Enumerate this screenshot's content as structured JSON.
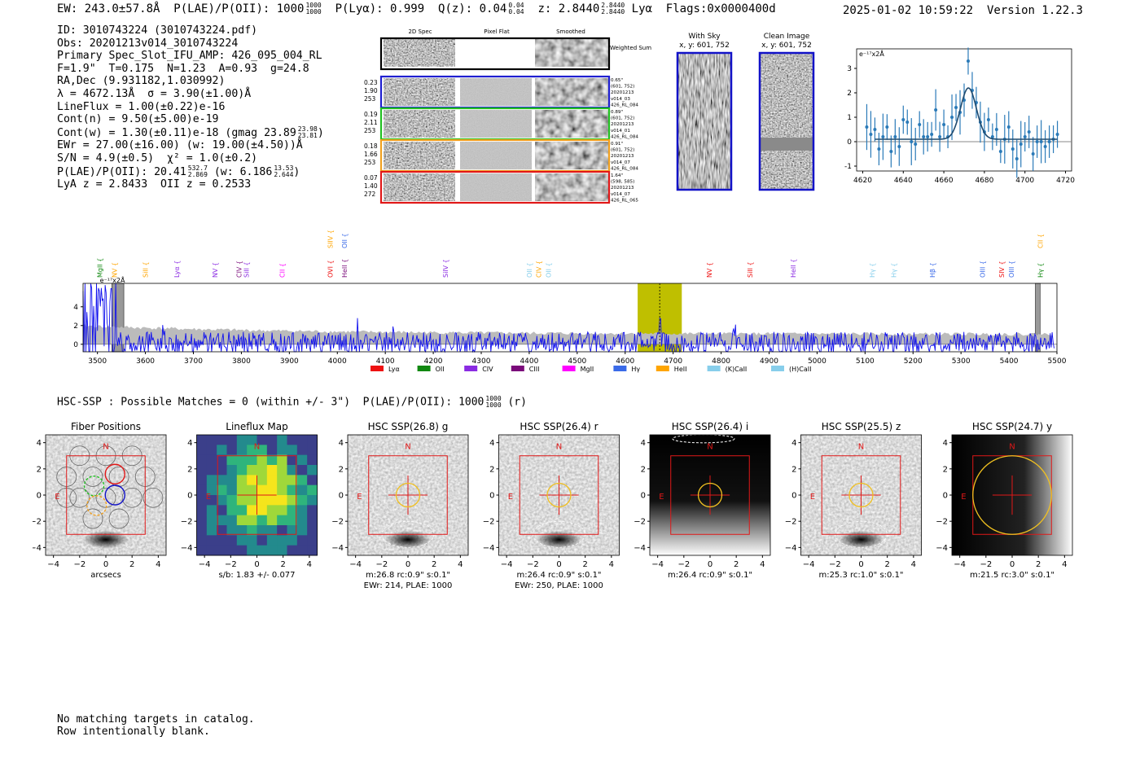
{
  "header": {
    "ew": "EW: 243.0±57.8Å",
    "plae_label": "P(LAE)/P(OII): 1000",
    "plae_hi": "1000",
    "plae_lo": "1000",
    "plya": "P(Lyα): 0.999",
    "qz_label": "Q(z): 0.04",
    "qz_hi": "0.04",
    "qz_lo": "0.04",
    "z_label": "z: 2.8440",
    "z_hi": "2.8440",
    "z_lo": "2.8440",
    "line": "Lyα",
    "flags": "Flags:0x0000400d",
    "datetime": "2025-01-02 10:59:22",
    "version": "Version 1.22.3"
  },
  "info": {
    "id": "ID: 3010743224 (3010743224.pdf)",
    "obs": "Obs: 20201213v014_3010743224",
    "primary": "Primary Spec_Slot_IFU_AMP: 426_095_004_RL",
    "params": "F=1.9\"  T=0.175  N=1.23  A=0.93  g=24.8",
    "radec": "RA,Dec (9.931182,1.030992)",
    "lambda": "λ = 4672.13Å  σ = 3.90(±1.00)Å",
    "lineflux": "LineFlux = 1.00(±0.22)e-16",
    "contn": "Cont(n) = 9.50(±5.00)e-19",
    "contw": "Cont(w) = 1.30(±0.11)e-18 (gmag 23.89",
    "contw_hi": "23.98",
    "contw_lo": "23.81",
    "ewr": "EWr = 27.00(±16.00) (w: 19.00(±4.50))Å",
    "sn": "S/N = 4.9(±0.5)  χ² = 1.0(±0.2)",
    "plae": "P(LAE)/P(OII): 20.41",
    "plae_hi": "532.7",
    "plae_lo": "2.869",
    "plae_w": "(w: 6.186",
    "plae_w_hi": "13.53",
    "plae_w_lo": "2.644",
    "lyaz": "LyA z = 2.8433  OII z = 0.2533"
  },
  "cutouts": {
    "col_headers": [
      "2D Spec",
      "Pixel Flat",
      "Smoothed"
    ],
    "weighted_sum": "Weighted Sum",
    "rows": [
      {
        "color": "#1f1fd0",
        "left": [
          "0.23",
          "1.90",
          "253"
        ],
        "right": [
          "0.65\"",
          "(601, 752)",
          "20201213",
          "v014_03",
          "426_RL_084"
        ]
      },
      {
        "color": "#22c022",
        "left": [
          "0.19",
          "2.11",
          "253"
        ],
        "right": [
          "0.89\"",
          "(601, 752)",
          "20201213",
          "v014_01",
          "426_RL_084"
        ]
      },
      {
        "color": "#f0a020",
        "left": [
          "0.18",
          "1.66",
          "253"
        ],
        "right": [
          "0.91\"",
          "(601, 752)",
          "20201213",
          "v014_07",
          "426_RL_084"
        ]
      },
      {
        "color": "#e01818",
        "left": [
          "0.07",
          "1.40",
          "272"
        ],
        "right": [
          "1.64\"",
          "(598, 585)",
          "20201213",
          "v014_07",
          "426_RL_065"
        ]
      }
    ],
    "with_sky_title": "With Sky",
    "with_sky_coords": "x, y: 601, 752",
    "clean_title": "Clean Image",
    "clean_coords": "x, y: 601, 752"
  },
  "zoom_chart": {
    "unit_label": "e⁻¹⁷x2Å",
    "x_ticks": [
      "4620",
      "4640",
      "4660",
      "4680",
      "4700",
      "4720"
    ],
    "y_ticks": [
      "3",
      "2",
      "1",
      "0",
      "-1"
    ]
  },
  "spectrum": {
    "unit_label": "e⁻¹⁷x2Å",
    "x_ticks": [
      "3500",
      "3600",
      "3700",
      "3800",
      "3900",
      "4000",
      "4100",
      "4200",
      "4300",
      "4400",
      "4500",
      "4600",
      "4700",
      "4800",
      "4900",
      "5000",
      "5100",
      "5200",
      "5300",
      "5400",
      "5500"
    ],
    "y_ticks": [
      "4",
      "2",
      "0"
    ],
    "legend": [
      {
        "label": "Lyα",
        "color": "#ee1111"
      },
      {
        "label": "OII",
        "color": "#118811"
      },
      {
        "label": "CIV",
        "color": "#8a2be2"
      },
      {
        "label": "CIII",
        "color": "#7a0a7a"
      },
      {
        "label": "MgII",
        "color": "#ff00ff"
      },
      {
        "label": "Hγ",
        "color": "#3a6ae8"
      },
      {
        "label": "HeII",
        "color": "#ffa500"
      },
      {
        "label": "(K)CaII",
        "color": "#87ceeb"
      },
      {
        "label": "(H)CaII",
        "color": "#87ceeb"
      }
    ],
    "lines": [
      {
        "label": "MgII",
        "wave": 3505,
        "color": "#118811",
        "row": 1
      },
      {
        "label": "NV",
        "wave": 3535,
        "color": "#ffa500",
        "row": 1
      },
      {
        "label": "SiII",
        "wave": 3600,
        "color": "#ffa500",
        "row": 1
      },
      {
        "label": "Lyα",
        "wave": 3665,
        "color": "#8a2be2",
        "row": 1
      },
      {
        "label": "NV",
        "wave": 3745,
        "color": "#8a2be2",
        "row": 1
      },
      {
        "label": "CIV",
        "wave": 3795,
        "color": "#7a0a7a",
        "row": 1
      },
      {
        "label": "SiII",
        "wave": 3810,
        "color": "#8a2be2",
        "row": 1
      },
      {
        "label": "CII",
        "wave": 3885,
        "color": "#ff00ff",
        "row": 1
      },
      {
        "label": "SIIV",
        "wave": 3985,
        "color": "#ffa500",
        "row": 0
      },
      {
        "label": "OVI",
        "wave": 3985,
        "color": "#ee1111",
        "row": 1
      },
      {
        "label": "OII",
        "wave": 4015,
        "color": "#3a6ae8",
        "row": 0
      },
      {
        "label": "HeII",
        "wave": 4015,
        "color": "#7a0a7a",
        "row": 1
      },
      {
        "label": "SiIV",
        "wave": 4225,
        "color": "#8a2be2",
        "row": 1
      },
      {
        "label": "OII",
        "wave": 4400,
        "color": "#87ceeb",
        "row": 1
      },
      {
        "label": "CIV",
        "wave": 4420,
        "color": "#ffa500",
        "row": 1
      },
      {
        "label": "OII",
        "wave": 4440,
        "color": "#87ceeb",
        "row": 1
      },
      {
        "label": "NV",
        "wave": 4775,
        "color": "#ee1111",
        "row": 1
      },
      {
        "label": "SiII",
        "wave": 4860,
        "color": "#ee1111",
        "row": 1
      },
      {
        "label": "HeII",
        "wave": 4950,
        "color": "#8a2be2",
        "row": 1
      },
      {
        "label": "Hγ",
        "wave": 5115,
        "color": "#87ceeb",
        "row": 1
      },
      {
        "label": "Hγ",
        "wave": 5160,
        "color": "#87ceeb",
        "row": 1
      },
      {
        "label": "Hβ",
        "wave": 5240,
        "color": "#3a6ae8",
        "row": 1
      },
      {
        "label": "OIII",
        "wave": 5345,
        "color": "#3a6ae8",
        "row": 1
      },
      {
        "label": "SIV",
        "wave": 5385,
        "color": "#ee1111",
        "row": 1
      },
      {
        "label": "OIII",
        "wave": 5405,
        "color": "#3a6ae8",
        "row": 1
      },
      {
        "label": "CII",
        "wave": 5465,
        "color": "#ffa500",
        "row": 0
      },
      {
        "label": "Hγ",
        "wave": 5465,
        "color": "#118811",
        "row": 1
      }
    ]
  },
  "hsc": {
    "header": "HSC-SSP : Possible Matches = 0 (within +/- 3\")  P(LAE)/P(OII): 1000",
    "header_hi": "1000",
    "header_lo": "1000",
    "header_suffix": "(r)",
    "axis_ticks": [
      "−4",
      "−2",
      "0",
      "2",
      "4"
    ],
    "y_ticks": [
      "4",
      "2",
      "0",
      "−2",
      "−4"
    ],
    "compass_n": "N",
    "compass_e": "E",
    "panels": [
      {
        "title": "Fiber Positions",
        "cap1": "arcsecs",
        "cap2": ""
      },
      {
        "title": "Lineflux Map",
        "cap1": "s/b: 1.83 +/- 0.077",
        "cap2": ""
      },
      {
        "title": "HSC SSP(26.8) g",
        "cap1": "m:26.8 rc:0.9\"  s:0.1\"",
        "cap2": "EWr: 214, PLAE: 1000"
      },
      {
        "title": "HSC SSP(26.4) r",
        "cap1": "m:26.4 rc:0.9\"  s:0.1\"",
        "cap2": "EWr: 250, PLAE: 1000"
      },
      {
        "title": "HSC SSP(26.4) i",
        "cap1": "m:26.4 rc:0.9\"  s:0.1\"",
        "cap2": ""
      },
      {
        "title": "HSC SSP(25.5) z",
        "cap1": "m:25.3 rc:1.0\"  s:0.1\"",
        "cap2": ""
      },
      {
        "title": "HSC SSP(24.7) y",
        "cap1": "m:21.5 rc:3.0\"  s:0.1\"",
        "cap2": ""
      }
    ]
  },
  "footer": {
    "line1": "No matching targets in catalog.",
    "line2": "Row intentionally blank."
  },
  "chart_data": [
    {
      "type": "scatter",
      "title": "",
      "xlabel": "",
      "ylabel": "e-17 x2Å",
      "xlim": [
        4617,
        4723
      ],
      "ylim": [
        -1.2,
        3.8
      ],
      "x": [
        4622,
        4624,
        4626,
        4628,
        4630,
        4632,
        4634,
        4636,
        4638,
        4640,
        4642,
        4644,
        4646,
        4648,
        4650,
        4652,
        4654,
        4656,
        4658,
        4660,
        4662,
        4664,
        4666,
        4668,
        4670,
        4672,
        4674,
        4676,
        4678,
        4680,
        4682,
        4684,
        4686,
        4688,
        4690,
        4692,
        4694,
        4696,
        4698,
        4700,
        4702,
        4704,
        4706,
        4708,
        4710,
        4712,
        4714,
        4716
      ],
      "y": [
        0.6,
        0.3,
        0.5,
        -0.3,
        0.2,
        0.6,
        -0.4,
        0.2,
        -0.2,
        0.9,
        0.8,
        0.0,
        -0.1,
        0.7,
        0.2,
        0.2,
        0.3,
        1.3,
        0.2,
        0.7,
        0.2,
        1.0,
        1.4,
        1.2,
        1.7,
        3.3,
        2.1,
        1.6,
        0.8,
        0.4,
        0.9,
        0.2,
        0.5,
        -0.4,
        0.1,
        0.6,
        -0.3,
        -0.7,
        -0.1,
        0.2,
        0.4,
        -0.5,
        0.0,
        0.0,
        -0.2,
        0.0,
        0.1,
        0.3
      ],
      "fit": {
        "center": 4672.13,
        "sigma": 3.9,
        "amplitude": 2.1,
        "baseline": 0.1
      }
    },
    {
      "type": "line",
      "title": "",
      "xlabel": "",
      "ylabel": "e-17 x2Å",
      "xlim": [
        3470,
        5500
      ],
      "ylim": [
        -0.8,
        6.5
      ],
      "emission_line": 4672,
      "highlight_range": [
        4626,
        4718
      ],
      "series": [
        {
          "name": "flux",
          "color": "#1010ee"
        },
        {
          "name": "noise",
          "color": "#bbbbbb"
        }
      ]
    }
  ]
}
